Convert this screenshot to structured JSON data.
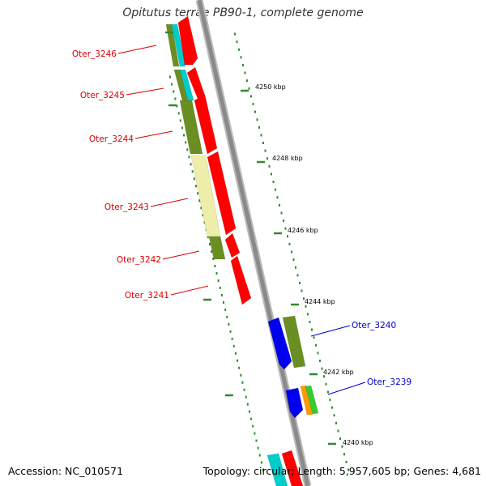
{
  "title": "Opitutus terrae PB90-1, complete genome",
  "accession": "Accession: NC_010571",
  "summary": "Topology: circular; Length: 5,957,605 bp; Genes: 4,681",
  "colors": {
    "backbone": "#8a8a8a",
    "tick": "#2e8b2e",
    "red_gene": "#ff0000",
    "olive_gene": "#6b8e23",
    "cyan_gene": "#00cccc",
    "yellow_gene": "#eeeeaa",
    "blue_gene": "#0000ee",
    "orange_gene": "#ff9900",
    "green_gene": "#33cc33",
    "label_red": "#dd0000",
    "label_blue": "#0000cc"
  },
  "kbp_labels": [
    "4250 kbp",
    "4248 kbp",
    "4246 kbp",
    "4244 kbp",
    "4242 kbp",
    "4240 kbp"
  ],
  "gene_labels": [
    {
      "text": "Oter_3246",
      "color": "label_red"
    },
    {
      "text": "Oter_3245",
      "color": "label_red"
    },
    {
      "text": "Oter_3244",
      "color": "label_red"
    },
    {
      "text": "Oter_3243",
      "color": "label_red"
    },
    {
      "text": "Oter_3242",
      "color": "label_red"
    },
    {
      "text": "Oter_3241",
      "color": "label_red"
    },
    {
      "text": "Oter_3240",
      "color": "label_blue"
    },
    {
      "text": "Oter_3239",
      "color": "label_blue"
    }
  ]
}
